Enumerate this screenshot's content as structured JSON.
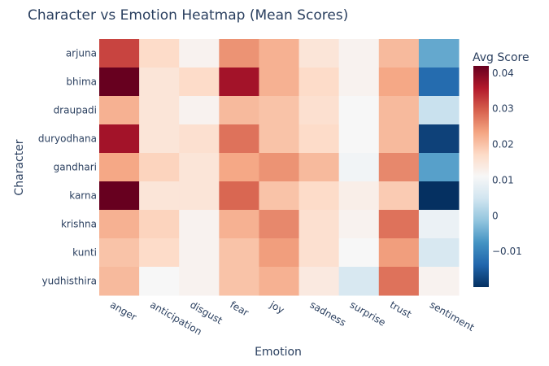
{
  "chart_data": {
    "type": "heatmap",
    "title": "Character vs Emotion Heatmap (Mean Scores)",
    "xlabel": "Emotion",
    "ylabel": "Character",
    "x": [
      "anger",
      "anticipation",
      "disgust",
      "fear",
      "joy",
      "sadness",
      "surprise",
      "trust",
      "sentiment"
    ],
    "y": [
      "arjuna",
      "bhima",
      "draupadi",
      "duryodhana",
      "gandhari",
      "karna",
      "krishna",
      "kunti",
      "yudhisthira"
    ],
    "z": [
      [
        0.032,
        0.017,
        0.012,
        0.025,
        0.022,
        0.015,
        0.012,
        0.021,
        -0.005
      ],
      [
        0.042,
        0.015,
        0.017,
        0.037,
        0.022,
        0.017,
        0.012,
        0.023,
        -0.013
      ],
      [
        0.022,
        0.015,
        0.012,
        0.021,
        0.02,
        0.016,
        0.011,
        0.021,
        0.004
      ],
      [
        0.037,
        0.015,
        0.016,
        0.028,
        0.02,
        0.017,
        0.011,
        0.021,
        -0.018
      ],
      [
        0.023,
        0.018,
        0.015,
        0.023,
        0.025,
        0.021,
        0.01,
        0.026,
        -0.006
      ],
      [
        0.042,
        0.015,
        0.015,
        0.029,
        0.02,
        0.017,
        0.013,
        0.019,
        -0.02
      ],
      [
        0.022,
        0.018,
        0.012,
        0.022,
        0.026,
        0.016,
        0.012,
        0.028,
        0.009
      ],
      [
        0.02,
        0.017,
        0.012,
        0.02,
        0.024,
        0.016,
        0.011,
        0.024,
        0.006
      ],
      [
        0.021,
        0.011,
        0.012,
        0.02,
        0.022,
        0.014,
        0.006,
        0.028,
        0.012
      ]
    ],
    "zmin": -0.02,
    "zmax": 0.042,
    "colorscale": [
      "#053061",
      "#2166ac",
      "#4393c3",
      "#92c5de",
      "#d1e5f0",
      "#f7f7f7",
      "#fddbc7",
      "#f4a582",
      "#d6604d",
      "#b2182b",
      "#67001f"
    ],
    "colorbar": {
      "title": "Avg Score",
      "ticks": [
        -0.01,
        0,
        0.01,
        0.02,
        0.03,
        0.04
      ],
      "tick_labels": [
        "−0.01",
        "0",
        "0.01",
        "0.02",
        "0.03",
        "0.04"
      ]
    }
  }
}
